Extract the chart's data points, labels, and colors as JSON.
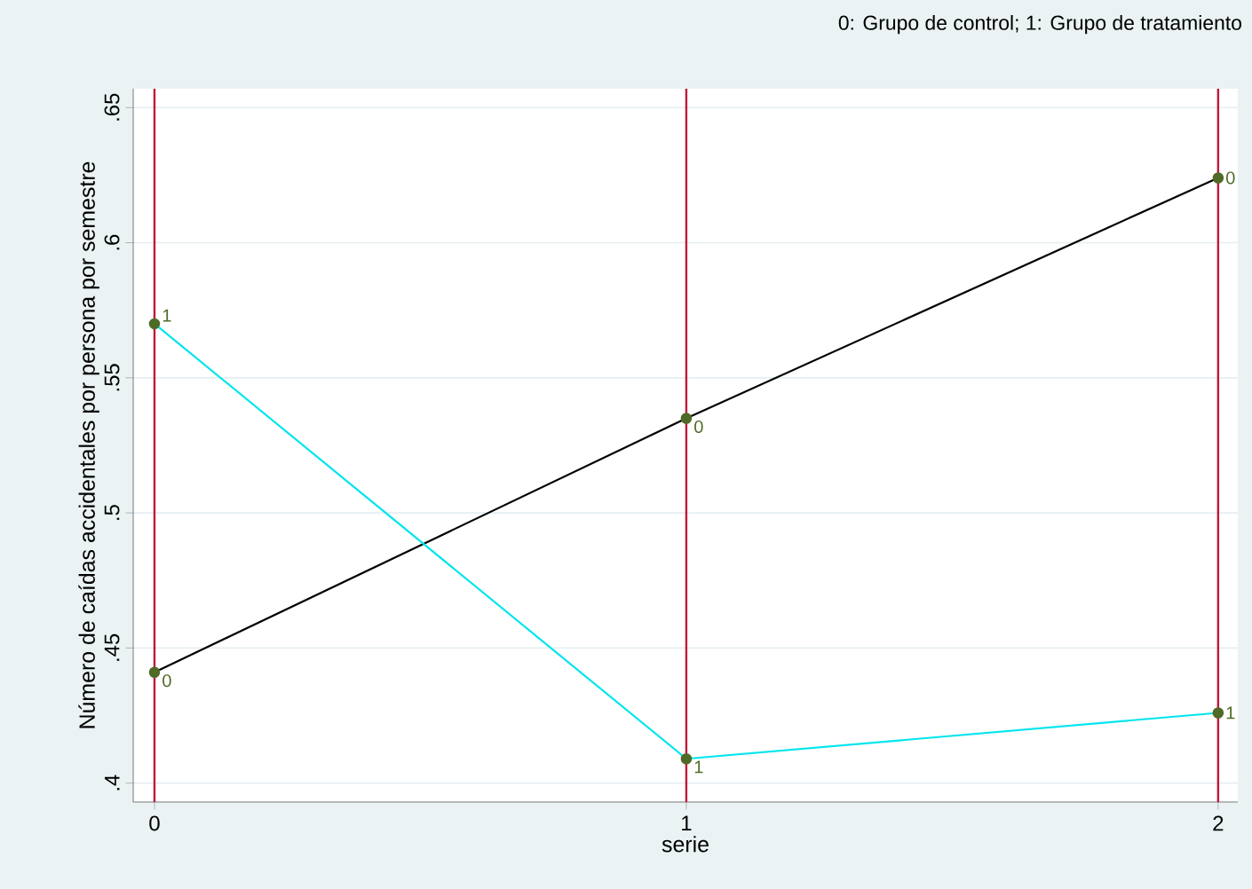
{
  "chart_data": {
    "type": "line",
    "xlabel": "serie",
    "ylabel": "Número de caídas accidentales por persona por semestre",
    "annotations": [
      "0: Grupo de control; 1: Grupo de tratamiento"
    ],
    "x": [
      0,
      1,
      2
    ],
    "series": [
      {
        "name": "0",
        "color": "#000000",
        "values": [
          0.441,
          0.535,
          0.624
        ]
      },
      {
        "name": "1",
        "color": "#00e5ee",
        "values": [
          0.57,
          0.409,
          0.426
        ]
      }
    ],
    "xlim": [
      -0.04,
      2.037
    ],
    "ylim": [
      0.393,
      0.657
    ],
    "xticks": [
      0,
      1,
      2
    ],
    "yticks": [
      {
        "value": 0.4,
        "label": ".4"
      },
      {
        "value": 0.45,
        "label": ".45"
      },
      {
        "value": 0.5,
        "label": ".5"
      },
      {
        "value": 0.55,
        "label": ".55"
      },
      {
        "value": 0.6,
        "label": ".6"
      },
      {
        "value": 0.65,
        "label": ".65"
      }
    ],
    "ref_lines": [
      {
        "axis": "x",
        "value": 0,
        "color": "#c0193a"
      },
      {
        "axis": "x",
        "value": 1,
        "color": "#c0193a"
      },
      {
        "axis": "x",
        "value": 2,
        "color": "#c0193a"
      }
    ],
    "grid": "y",
    "marker": "circle"
  }
}
